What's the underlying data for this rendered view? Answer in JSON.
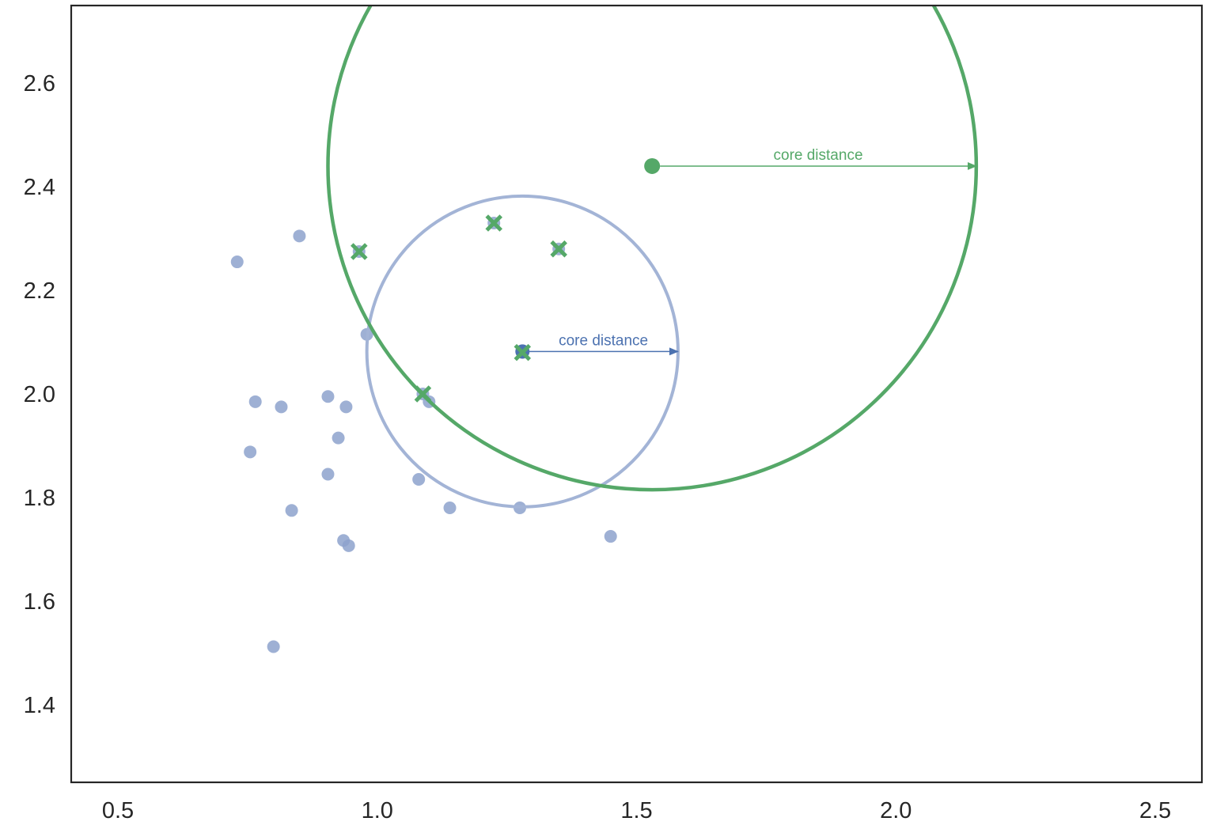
{
  "chart_data": {
    "type": "scatter",
    "title": "",
    "xlabel": "",
    "ylabel": "",
    "xlim": [
      0.41,
      2.59
    ],
    "ylim": [
      1.25,
      2.75
    ],
    "grid": false,
    "x_ticks": [
      0.5,
      1.0,
      1.5,
      2.0,
      2.5
    ],
    "x_tick_labels": [
      "0.5",
      "1.0",
      "1.5",
      "2.0",
      "2.5"
    ],
    "y_ticks": [
      1.4,
      1.6,
      1.8,
      2.0,
      2.2,
      2.4,
      2.6
    ],
    "y_tick_labels": [
      "1.4",
      "1.6",
      "1.8",
      "2.0",
      "2.2",
      "2.4",
      "2.6"
    ],
    "colors": {
      "points": "#8da2cc",
      "blue": "#4c72b0",
      "light_blue_circle": "#a3b4d6",
      "green": "#55a868",
      "axes": "#262626"
    },
    "points": [
      {
        "x": 0.73,
        "y": 2.255
      },
      {
        "x": 0.85,
        "y": 2.305
      },
      {
        "x": 0.98,
        "y": 2.115
      },
      {
        "x": 0.765,
        "y": 1.985
      },
      {
        "x": 0.815,
        "y": 1.975
      },
      {
        "x": 0.905,
        "y": 1.995
      },
      {
        "x": 0.94,
        "y": 1.975
      },
      {
        "x": 0.925,
        "y": 1.915
      },
      {
        "x": 0.755,
        "y": 1.888
      },
      {
        "x": 0.905,
        "y": 1.845
      },
      {
        "x": 1.08,
        "y": 1.835
      },
      {
        "x": 1.1,
        "y": 1.985
      },
      {
        "x": 1.14,
        "y": 1.78
      },
      {
        "x": 1.275,
        "y": 1.78
      },
      {
        "x": 0.835,
        "y": 1.775
      },
      {
        "x": 0.935,
        "y": 1.717
      },
      {
        "x": 0.945,
        "y": 1.707
      },
      {
        "x": 1.45,
        "y": 1.725
      },
      {
        "x": 0.8,
        "y": 1.512
      },
      {
        "x": 1.28,
        "y": 2.08
      },
      {
        "x": 0.965,
        "y": 2.275
      },
      {
        "x": 1.225,
        "y": 2.33
      },
      {
        "x": 1.35,
        "y": 2.28
      },
      {
        "x": 1.088,
        "y": 2.0
      }
    ],
    "neighbor_points": [
      {
        "x": 0.965,
        "y": 2.275
      },
      {
        "x": 1.225,
        "y": 2.33
      },
      {
        "x": 1.35,
        "y": 2.28
      },
      {
        "x": 1.28,
        "y": 2.08
      },
      {
        "x": 1.088,
        "y": 2.0
      }
    ],
    "blue_core": {
      "center": [
        1.28,
        2.082
      ],
      "radius": 0.3,
      "label": "core distance"
    },
    "green_core": {
      "center": [
        1.53,
        2.44
      ],
      "radius": 0.625,
      "label": "core distance"
    }
  }
}
